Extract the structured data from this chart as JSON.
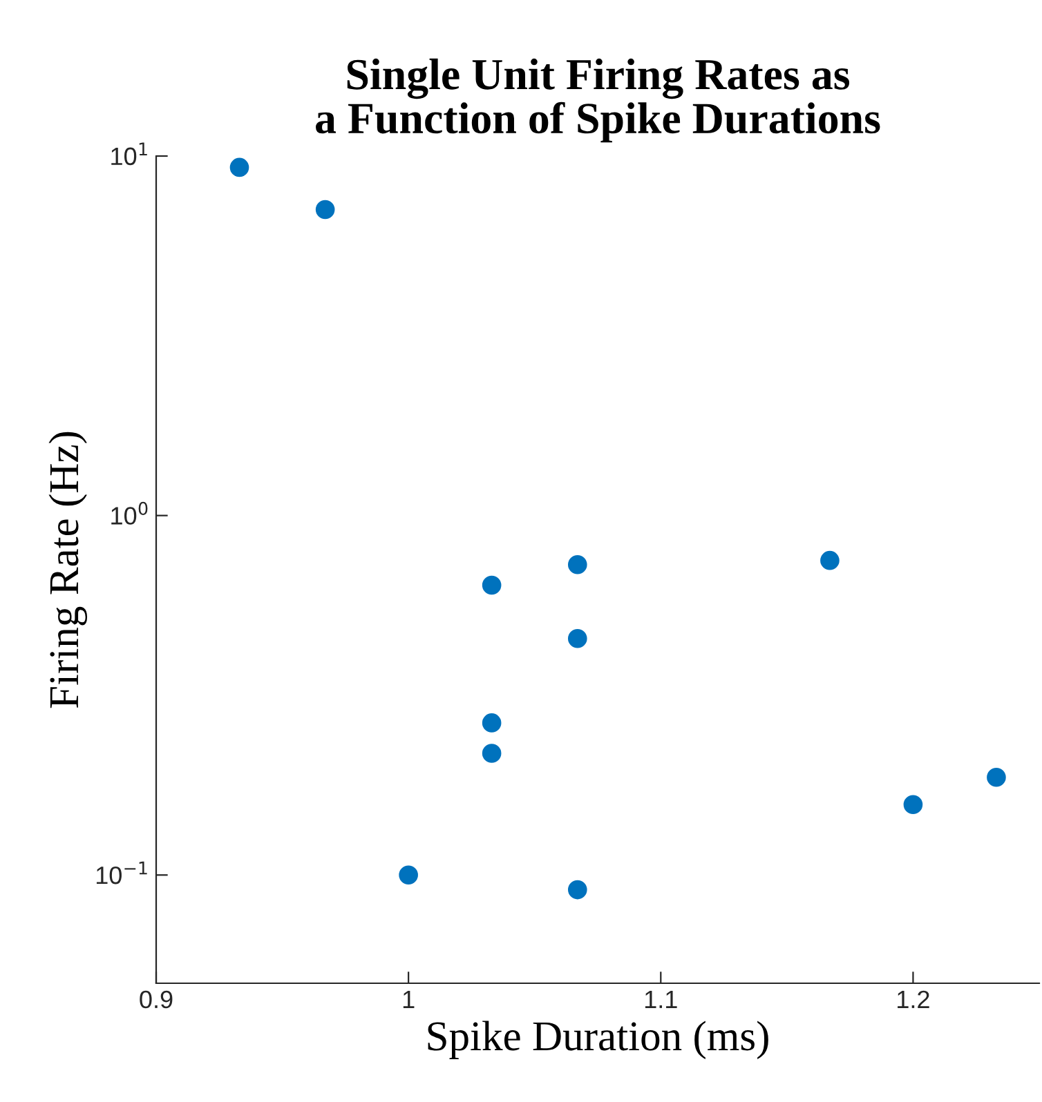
{
  "chart_data": {
    "type": "scatter",
    "title": "Single Unit Firing Rates as\na Function of Spike Durations",
    "xlabel": "Spike Duration (ms)",
    "ylabel": "Firing Rate (Hz)",
    "x": [
      0.933,
      0.967,
      1.0,
      1.033,
      1.033,
      1.033,
      1.067,
      1.067,
      1.067,
      1.167,
      1.2,
      1.233
    ],
    "series": [
      {
        "color": "#0072bd",
        "values": [
          9.3,
          7.1,
          0.1,
          0.64,
          0.265,
          0.218,
          0.73,
          0.455,
          0.091,
          0.75,
          0.157,
          0.187
        ]
      }
    ],
    "xlim": [
      0.9,
      1.25
    ],
    "xticks": [
      0.9,
      1,
      1.1,
      1.2
    ],
    "ylim": [
      0.05,
      10
    ],
    "yticks": [
      {
        "value": 0.1,
        "label": "10$^{−1}$"
      },
      {
        "value": 1,
        "label": "10$^{0}$"
      },
      {
        "value": 10,
        "label": "10$^{1}$"
      }
    ],
    "log": "y",
    "marker": "circle"
  }
}
